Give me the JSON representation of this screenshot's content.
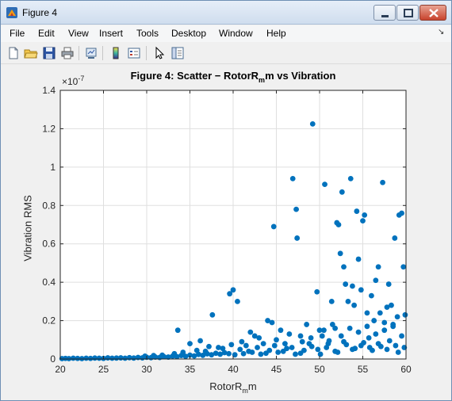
{
  "window": {
    "title": "Figure 4"
  },
  "icons": {
    "app": "matlab-figure-icon",
    "minimize": "minimize-icon",
    "maximize": "maximize-icon",
    "close": "close-icon"
  },
  "menu": {
    "items": [
      "File",
      "Edit",
      "View",
      "Insert",
      "Tools",
      "Desktop",
      "Window",
      "Help"
    ],
    "overflow": "↘"
  },
  "toolbar": {
    "tools": [
      "new-figure-icon",
      "open-file-icon",
      "save-icon",
      "print-icon",
      "link-plot-icon",
      "insert-colorbar-icon",
      "insert-legend-icon",
      "pointer-icon",
      "plot-tools-icon"
    ]
  },
  "plot": {
    "title_main": "Figure 4: Scatter − RotorR",
    "title_sub": "m",
    "title_rest": "m vs Vibration",
    "xlabel_main": "RotorR",
    "xlabel_sub": "m",
    "xlabel_rest": "m",
    "ylabel": "Vibration RMS",
    "y_exponent_prefix": "×10",
    "y_exponent": "-7",
    "marker_color": "#0072bd"
  },
  "chart_data": {
    "type": "scatter",
    "xlim": [
      20,
      60
    ],
    "ylim": [
      0,
      1.4
    ],
    "y_scale_note": "×10^-7",
    "xticks": [
      20,
      25,
      30,
      35,
      40,
      45,
      50,
      55,
      60
    ],
    "yticks": [
      0,
      0.2,
      0.4,
      0.6,
      0.8,
      1,
      1.2,
      1.4
    ],
    "ytick_labels": [
      "0",
      "0.2",
      "0.4",
      "0.6",
      "0.8",
      "1",
      "1.2",
      "1.4"
    ],
    "grid": true,
    "series": [
      {
        "points": [
          [
            20.2,
            0.002
          ],
          [
            20.6,
            0.003
          ],
          [
            21.0,
            0.002
          ],
          [
            21.5,
            0.004
          ],
          [
            22.0,
            0.003
          ],
          [
            22.5,
            0.002
          ],
          [
            23.0,
            0.004
          ],
          [
            23.5,
            0.003
          ],
          [
            24.0,
            0.005
          ],
          [
            24.5,
            0.004
          ],
          [
            25.0,
            0.003
          ],
          [
            25.5,
            0.006
          ],
          [
            26.0,
            0.004
          ],
          [
            26.5,
            0.005
          ],
          [
            27.0,
            0.006
          ],
          [
            27.5,
            0.004
          ],
          [
            28.0,
            0.007
          ],
          [
            28.5,
            0.005
          ],
          [
            29.0,
            0.008
          ],
          [
            29.5,
            0.006
          ],
          [
            30.0,
            0.009
          ],
          [
            30.5,
            0.007
          ],
          [
            31.0,
            0.01
          ],
          [
            31.5,
            0.008
          ],
          [
            32.0,
            0.012
          ],
          [
            32.5,
            0.01
          ],
          [
            33.0,
            0.015
          ],
          [
            33.5,
            0.012
          ],
          [
            34.0,
            0.018
          ],
          [
            34.5,
            0.014
          ],
          [
            35.0,
            0.02
          ],
          [
            35.5,
            0.016
          ],
          [
            36.0,
            0.024
          ],
          [
            36.5,
            0.019
          ],
          [
            37.0,
            0.027
          ],
          [
            37.5,
            0.022
          ],
          [
            38.0,
            0.03
          ],
          [
            38.5,
            0.025
          ],
          [
            39.0,
            0.033
          ],
          [
            39.5,
            0.028
          ],
          [
            33.6,
            0.15
          ],
          [
            35.0,
            0.08
          ],
          [
            36.2,
            0.095
          ],
          [
            37.6,
            0.23
          ],
          [
            38.3,
            0.06
          ],
          [
            39.6,
            0.34
          ],
          [
            40.0,
            0.36
          ],
          [
            40.5,
            0.3
          ],
          [
            41.0,
            0.09
          ],
          [
            41.5,
            0.07
          ],
          [
            42.0,
            0.14
          ],
          [
            42.5,
            0.12
          ],
          [
            43.0,
            0.11
          ],
          [
            43.5,
            0.08
          ],
          [
            44.0,
            0.2
          ],
          [
            44.5,
            0.19
          ],
          [
            44.7,
            0.69
          ],
          [
            45.0,
            0.1
          ],
          [
            45.5,
            0.15
          ],
          [
            46.0,
            0.08
          ],
          [
            46.5,
            0.13
          ],
          [
            46.9,
            0.94
          ],
          [
            47.3,
            0.78
          ],
          [
            47.4,
            0.63
          ],
          [
            47.8,
            0.12
          ],
          [
            48.0,
            0.09
          ],
          [
            48.5,
            0.18
          ],
          [
            49.0,
            0.11
          ],
          [
            49.2,
            1.225
          ],
          [
            49.7,
            0.35
          ],
          [
            50.0,
            0.15
          ],
          [
            50.3,
            0.12
          ],
          [
            50.6,
            0.91
          ],
          [
            51.0,
            0.08
          ],
          [
            51.4,
            0.3
          ],
          [
            51.8,
            0.16
          ],
          [
            52.0,
            0.71
          ],
          [
            52.2,
            0.7
          ],
          [
            52.4,
            0.55
          ],
          [
            52.6,
            0.87
          ],
          [
            52.8,
            0.48
          ],
          [
            53.0,
            0.39
          ],
          [
            53.3,
            0.3
          ],
          [
            53.6,
            0.94
          ],
          [
            53.8,
            0.38
          ],
          [
            54.0,
            0.28
          ],
          [
            54.3,
            0.77
          ],
          [
            54.5,
            0.52
          ],
          [
            54.8,
            0.36
          ],
          [
            55.0,
            0.72
          ],
          [
            55.2,
            0.75
          ],
          [
            55.5,
            0.24
          ],
          [
            55.7,
            0.11
          ],
          [
            56.0,
            0.33
          ],
          [
            56.3,
            0.2
          ],
          [
            56.5,
            0.41
          ],
          [
            56.8,
            0.48
          ],
          [
            57.0,
            0.24
          ],
          [
            57.3,
            0.92
          ],
          [
            57.5,
            0.19
          ],
          [
            57.8,
            0.27
          ],
          [
            58.0,
            0.39
          ],
          [
            58.3,
            0.28
          ],
          [
            58.5,
            0.17
          ],
          [
            58.7,
            0.63
          ],
          [
            59.0,
            0.22
          ],
          [
            59.2,
            0.75
          ],
          [
            59.5,
            0.76
          ],
          [
            59.7,
            0.48
          ],
          [
            59.9,
            0.23
          ],
          [
            40.8,
            0.05
          ],
          [
            41.8,
            0.04
          ],
          [
            42.8,
            0.06
          ],
          [
            43.8,
            0.03
          ],
          [
            44.8,
            0.07
          ],
          [
            45.8,
            0.04
          ],
          [
            46.8,
            0.06
          ],
          [
            47.8,
            0.03
          ],
          [
            48.8,
            0.08
          ],
          [
            49.8,
            0.05
          ],
          [
            50.8,
            0.06
          ],
          [
            51.8,
            0.04
          ],
          [
            52.8,
            0.09
          ],
          [
            53.8,
            0.05
          ],
          [
            54.8,
            0.07
          ],
          [
            55.8,
            0.06
          ],
          [
            56.8,
            0.08
          ],
          [
            57.8,
            0.05
          ],
          [
            58.8,
            0.07
          ],
          [
            59.8,
            0.06
          ],
          [
            50.5,
            0.15
          ],
          [
            51.5,
            0.18
          ],
          [
            52.5,
            0.12
          ],
          [
            53.5,
            0.16
          ],
          [
            54.5,
            0.14
          ],
          [
            55.5,
            0.17
          ],
          [
            56.5,
            0.13
          ],
          [
            57.5,
            0.15
          ],
          [
            58.5,
            0.18
          ],
          [
            59.5,
            0.12
          ],
          [
            48.2,
            0.045
          ],
          [
            49.1,
            0.065
          ],
          [
            50.1,
            0.025
          ],
          [
            51.1,
            0.095
          ],
          [
            52.1,
            0.035
          ],
          [
            53.1,
            0.075
          ],
          [
            54.1,
            0.055
          ],
          [
            55.1,
            0.085
          ],
          [
            56.1,
            0.045
          ],
          [
            57.1,
            0.065
          ],
          [
            58.1,
            0.095
          ],
          [
            59.1,
            0.035
          ],
          [
            43.2,
            0.025
          ],
          [
            44.2,
            0.045
          ],
          [
            45.2,
            0.035
          ],
          [
            46.2,
            0.055
          ],
          [
            47.2,
            0.025
          ],
          [
            42.2,
            0.035
          ],
          [
            41.2,
            0.028
          ],
          [
            40.2,
            0.022
          ],
          [
            35.8,
            0.045
          ],
          [
            37.2,
            0.065
          ],
          [
            38.8,
            0.055
          ],
          [
            39.8,
            0.075
          ],
          [
            36.8,
            0.04
          ],
          [
            34.2,
            0.035
          ],
          [
            33.2,
            0.028
          ],
          [
            31.8,
            0.02
          ],
          [
            30.8,
            0.018
          ],
          [
            29.8,
            0.015
          ]
        ]
      }
    ]
  }
}
